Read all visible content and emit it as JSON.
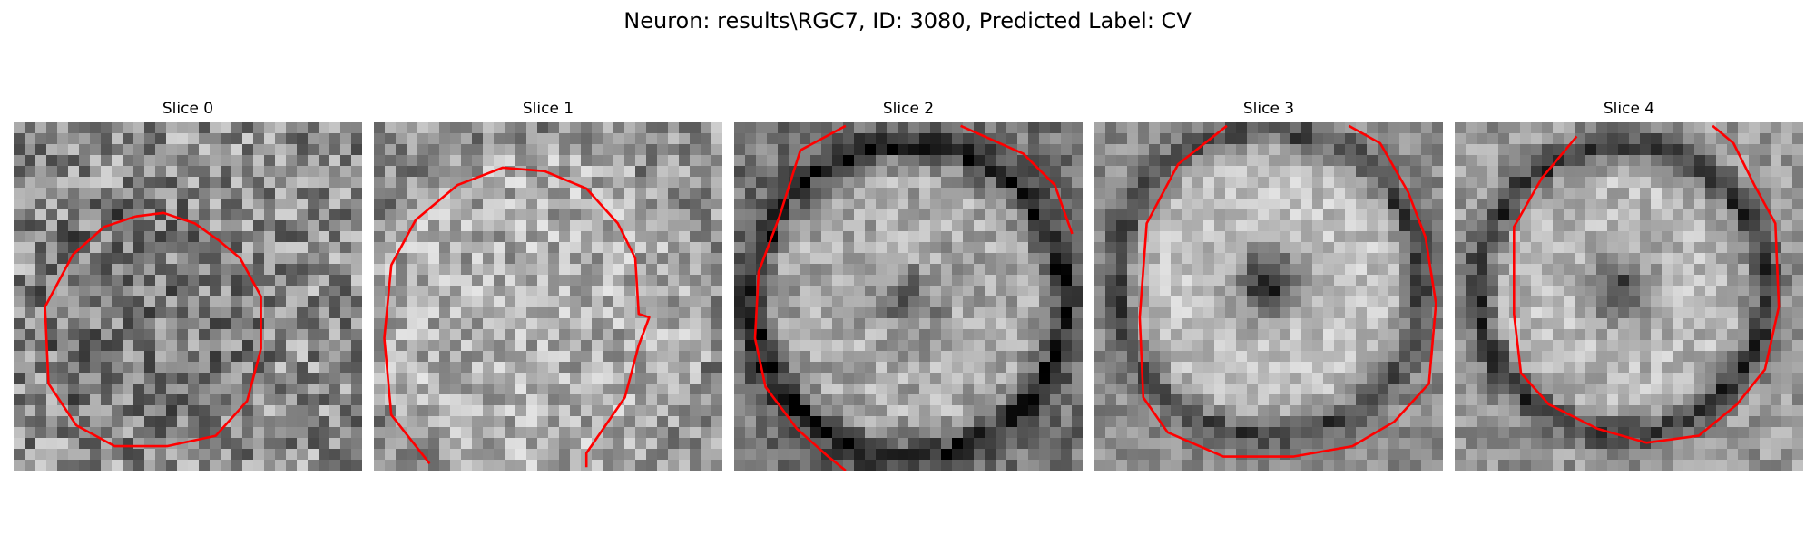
{
  "figure": {
    "title": "Neuron: results\\RGC7, ID: 3080, Predicted Label: CV"
  },
  "colors": {
    "background": "#ffffff",
    "contour": "#ff0000",
    "pixel_min": "#000000",
    "pixel_max": "#ffffff"
  },
  "panels": [
    {
      "title": "Slice 0"
    },
    {
      "title": "Slice 1"
    },
    {
      "title": "Slice 2"
    },
    {
      "title": "Slice 3"
    },
    {
      "title": "Slice 4"
    }
  ]
}
